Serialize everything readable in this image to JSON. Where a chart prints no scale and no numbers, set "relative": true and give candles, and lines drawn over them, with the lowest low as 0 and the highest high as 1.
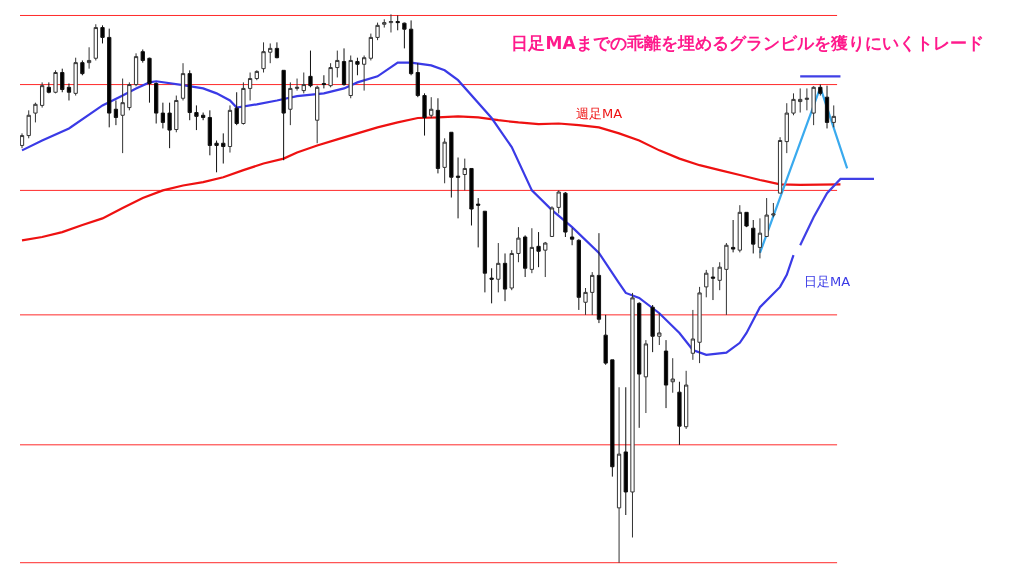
{
  "chart_data": {
    "type": "candlestick",
    "relative": true,
    "title": "日足MAまでの乖離を埋めるグランビルを獲りにいくトレード",
    "tick_labels": false,
    "legend": false,
    "categories": [
      null,
      null,
      null,
      null,
      null,
      null,
      null,
      null,
      null,
      null,
      null,
      null,
      null,
      null,
      null,
      null,
      null,
      null,
      null,
      null,
      null,
      null,
      null,
      null,
      null,
      null,
      null,
      null,
      null,
      null,
      null,
      null,
      null,
      null,
      null,
      null,
      null,
      null,
      null,
      null,
      null,
      null,
      null,
      null,
      null,
      null,
      null,
      null,
      null,
      null,
      null,
      null,
      null,
      null,
      null,
      null,
      null,
      null,
      null,
      null,
      null,
      null,
      null,
      null,
      null,
      null,
      null,
      null,
      null,
      null,
      null,
      null,
      null,
      null,
      null,
      null,
      null,
      null,
      null,
      null,
      null,
      null,
      null,
      null,
      null,
      null,
      null,
      null,
      null,
      null,
      null,
      null,
      null,
      null,
      null,
      null,
      null,
      null,
      null,
      null,
      null,
      null,
      null,
      null,
      null,
      null,
      null,
      null,
      null,
      null,
      null,
      null,
      null,
      null,
      null,
      null,
      null,
      null,
      null,
      null,
      null,
      null,
      null,
      null,
      null,
      null,
      null,
      null
    ],
    "ohlc": [
      [
        0.761,
        0.783,
        0.756,
        0.779
      ],
      [
        0.779,
        0.825,
        0.774,
        0.816
      ],
      [
        0.82,
        0.839,
        0.803,
        0.836
      ],
      [
        0.834,
        0.876,
        0.83,
        0.87
      ],
      [
        0.867,
        0.876,
        0.856,
        0.858
      ],
      [
        0.858,
        0.898,
        0.856,
        0.894
      ],
      [
        0.894,
        0.901,
        0.858,
        0.863
      ],
      [
        0.867,
        0.874,
        0.843,
        0.858
      ],
      [
        0.856,
        0.921,
        0.852,
        0.912
      ],
      [
        0.912,
        0.916,
        0.889,
        0.892
      ],
      [
        0.912,
        0.94,
        0.901,
        0.916
      ],
      [
        0.92,
        0.982,
        0.916,
        0.976
      ],
      [
        0.976,
        0.98,
        0.947,
        0.958
      ],
      [
        0.958,
        0.974,
        0.794,
        0.82
      ],
      [
        0.827,
        0.843,
        0.798,
        0.812
      ],
      [
        0.816,
        0.883,
        0.747,
        0.839
      ],
      [
        0.83,
        0.876,
        0.825,
        0.872
      ],
      [
        0.872,
        0.929,
        0.869,
        0.923
      ],
      [
        0.932,
        0.936,
        0.912,
        0.916
      ],
      [
        0.92,
        0.921,
        0.839,
        0.874
      ],
      [
        0.874,
        0.876,
        0.801,
        0.82
      ],
      [
        0.82,
        0.839,
        0.792,
        0.803
      ],
      [
        0.82,
        0.839,
        0.756,
        0.789
      ],
      [
        0.79,
        0.852,
        0.785,
        0.843
      ],
      [
        0.847,
        0.911,
        0.843,
        0.892
      ],
      [
        0.892,
        0.898,
        0.807,
        0.821
      ],
      [
        0.821,
        0.834,
        0.789,
        0.814
      ],
      [
        0.816,
        0.821,
        0.807,
        0.812
      ],
      [
        0.812,
        0.825,
        0.743,
        0.761
      ],
      [
        0.765,
        0.77,
        0.712,
        0.761
      ],
      [
        0.765,
        0.783,
        0.728,
        0.759
      ],
      [
        0.759,
        0.834,
        0.748,
        0.825
      ],
      [
        0.829,
        0.858,
        0.798,
        0.801
      ],
      [
        0.801,
        0.876,
        0.799,
        0.865
      ],
      [
        0.865,
        0.894,
        0.843,
        0.883
      ],
      [
        0.883,
        0.898,
        0.88,
        0.896
      ],
      [
        0.901,
        0.949,
        0.894,
        0.932
      ],
      [
        0.931,
        0.947,
        0.911,
        0.938
      ],
      [
        0.938,
        0.949,
        0.92,
        0.921
      ],
      [
        0.898,
        0.898,
        0.734,
        0.82
      ],
      [
        0.827,
        0.876,
        0.798,
        0.865
      ],
      [
        0.865,
        0.883,
        0.861,
        0.867
      ],
      [
        0.861,
        0.894,
        0.856,
        0.872
      ],
      [
        0.887,
        0.934,
        0.867,
        0.87
      ],
      [
        0.807,
        0.87,
        0.765,
        0.867
      ],
      [
        0.874,
        0.889,
        0.865,
        0.872
      ],
      [
        0.87,
        0.911,
        0.867,
        0.903
      ],
      [
        0.903,
        0.934,
        0.885,
        0.916
      ],
      [
        0.914,
        0.938,
        0.87,
        0.872
      ],
      [
        0.852,
        0.925,
        0.847,
        0.916
      ],
      [
        0.914,
        0.921,
        0.889,
        0.909
      ],
      [
        0.909,
        0.925,
        0.861,
        0.921
      ],
      [
        0.92,
        0.965,
        0.916,
        0.958
      ],
      [
        0.958,
        0.985,
        0.953,
        0.98
      ],
      [
        0.982,
        0.991,
        0.976,
        0.985
      ],
      [
        0.985,
        1.0,
        0.967,
        0.987
      ],
      [
        0.987,
        0.998,
        0.971,
        0.985
      ],
      [
        0.984,
        0.985,
        0.938,
        0.973
      ],
      [
        0.973,
        0.989,
        0.889,
        0.892
      ],
      [
        0.894,
        0.911,
        0.849,
        0.852
      ],
      [
        0.852,
        0.856,
        0.779,
        0.812
      ],
      [
        0.816,
        0.849,
        0.811,
        0.827
      ],
      [
        0.825,
        0.847,
        0.71,
        0.719
      ],
      [
        0.721,
        0.774,
        0.692,
        0.767
      ],
      [
        0.785,
        0.785,
        0.666,
        0.703
      ],
      [
        0.705,
        0.739,
        0.628,
        0.703
      ],
      [
        0.708,
        0.737,
        0.679,
        0.719
      ],
      [
        0.719,
        0.719,
        0.615,
        0.645
      ],
      [
        0.654,
        0.665,
        0.575,
        0.652
      ],
      [
        0.641,
        0.641,
        0.493,
        0.528
      ],
      [
        0.519,
        0.537,
        0.473,
        0.517
      ],
      [
        0.517,
        0.583,
        0.493,
        0.546
      ],
      [
        0.546,
        0.564,
        0.477,
        0.499
      ],
      [
        0.501,
        0.57,
        0.497,
        0.564
      ],
      [
        0.564,
        0.612,
        0.548,
        0.592
      ],
      [
        0.594,
        0.597,
        0.521,
        0.537
      ],
      [
        0.535,
        0.61,
        0.528,
        0.575
      ],
      [
        0.577,
        0.603,
        0.539,
        0.568
      ],
      [
        0.57,
        0.585,
        0.521,
        0.583
      ],
      [
        0.595,
        0.65,
        0.594,
        0.647
      ],
      [
        0.648,
        0.679,
        0.637,
        0.676
      ],
      [
        0.674,
        0.676,
        0.594,
        0.603
      ],
      [
        0.594,
        0.61,
        0.579,
        0.59
      ],
      [
        0.588,
        0.59,
        0.461,
        0.484
      ],
      [
        0.475,
        0.501,
        0.452,
        0.493
      ],
      [
        0.493,
        0.53,
        0.452,
        0.524
      ],
      [
        0.524,
        0.601,
        0.437,
        0.444
      ],
      [
        0.415,
        0.452,
        0.361,
        0.364
      ],
      [
        0.37,
        0.37,
        0.157,
        0.175
      ],
      [
        0.1,
        0.32,
        0.0,
        0.198
      ],
      [
        0.202,
        0.32,
        0.087,
        0.129
      ],
      [
        0.129,
        0.492,
        0.046,
        0.483
      ],
      [
        0.473,
        0.475,
        0.246,
        0.344
      ],
      [
        0.339,
        0.406,
        0.273,
        0.399
      ],
      [
        0.466,
        0.47,
        0.384,
        0.413
      ],
      [
        0.413,
        0.455,
        0.397,
        0.419
      ],
      [
        0.386,
        0.406,
        0.282,
        0.324
      ],
      [
        0.33,
        0.373,
        0.31,
        0.335
      ],
      [
        0.311,
        0.33,
        0.215,
        0.249
      ],
      [
        0.248,
        0.35,
        0.244,
        0.324
      ],
      [
        0.382,
        0.461,
        0.37,
        0.408
      ],
      [
        0.402,
        0.503,
        0.364,
        0.492
      ],
      [
        0.503,
        0.534,
        0.484,
        0.528
      ],
      [
        0.521,
        0.539,
        0.479,
        0.519
      ],
      [
        0.515,
        0.548,
        0.497,
        0.539
      ],
      [
        0.535,
        0.583,
        0.452,
        0.579
      ],
      [
        0.575,
        0.625,
        0.566,
        0.572
      ],
      [
        0.57,
        0.652,
        0.566,
        0.639
      ],
      [
        0.639,
        0.639,
        0.612,
        0.614
      ],
      [
        0.61,
        0.625,
        0.564,
        0.581
      ],
      [
        0.575,
        0.628,
        0.555,
        0.601
      ],
      [
        0.595,
        0.665,
        0.594,
        0.634
      ],
      [
        0.634,
        0.656,
        0.63,
        0.636
      ],
      [
        0.674,
        0.776,
        0.674,
        0.77
      ],
      [
        0.768,
        0.838,
        0.747,
        0.82
      ],
      [
        0.82,
        0.856,
        0.816,
        0.845
      ],
      [
        0.841,
        0.865,
        0.821,
        0.845
      ],
      [
        0.845,
        0.865,
        0.825,
        0.847
      ],
      [
        0.82,
        0.869,
        0.798,
        0.867
      ],
      [
        0.867,
        0.872,
        0.852,
        0.856
      ],
      [
        0.849,
        0.87,
        0.792,
        0.803
      ],
      [
        0.803,
        0.834,
        0.794,
        0.814
      ],
      null,
      null,
      null,
      null,
      null,
      null
    ],
    "series": [
      {
        "type": "line",
        "name": "週足MA",
        "color": "#ee1111",
        "values": [
          0.588,
          null,
          null,
          0.594,
          null,
          null,
          0.603,
          null,
          null,
          0.616,
          null,
          null,
          0.628,
          null,
          null,
          0.647,
          null,
          null,
          0.665,
          null,
          null,
          0.679,
          null,
          null,
          0.688,
          null,
          null,
          0.694,
          null,
          null,
          0.703,
          null,
          null,
          0.716,
          null,
          null,
          0.728,
          null,
          null,
          0.737,
          null,
          0.748,
          null,
          null,
          0.761,
          null,
          null,
          0.772,
          null,
          null,
          0.783,
          null,
          null,
          0.794,
          null,
          null,
          0.803,
          null,
          null,
          0.811,
          null,
          null,
          0.812,
          null,
          null,
          0.814,
          null,
          null,
          0.812,
          null,
          null,
          0.807,
          null,
          null,
          0.803,
          null,
          null,
          0.8,
          null,
          null,
          0.801,
          null,
          null,
          0.798,
          null,
          null,
          0.794,
          null,
          null,
          0.783,
          null,
          null,
          0.77,
          null,
          null,
          0.752,
          null,
          null,
          0.737,
          null,
          null,
          0.725,
          null,
          null,
          0.716,
          null,
          null,
          0.707,
          null,
          null,
          0.698,
          null,
          null,
          0.69,
          null,
          null,
          0.689,
          null,
          null,
          null,
          null,
          null,
          0.69,
          null,
          null,
          null,
          null,
          null
        ]
      },
      {
        "type": "line",
        "name": "日足MA",
        "color": "#3a3ae6",
        "values": [
          0.752,
          null,
          null,
          0.77,
          null,
          null,
          null,
          0.792,
          null,
          null,
          null,
          null,
          0.834,
          null,
          null,
          0.852,
          null,
          0.865,
          null,
          0.876,
          0.878,
          null,
          null,
          null,
          0.871,
          null,
          null,
          0.865,
          null,
          0.856,
          null,
          0.843,
          0.83,
          null,
          null,
          0.836,
          null,
          null,
          0.843,
          null,
          null,
          0.851,
          null,
          null,
          null,
          0.856,
          null,
          null,
          0.865,
          null,
          0.876,
          null,
          null,
          0.887,
          null,
          null,
          0.912,
          null,
          0.912,
          null,
          null,
          0.907,
          null,
          0.898,
          null,
          0.88,
          null,
          null,
          null,
          null,
          0.811,
          null,
          null,
          0.758,
          null,
          null,
          0.679,
          null,
          null,
          0.643,
          null,
          null,
          0.612,
          null,
          null,
          null,
          0.565,
          null,
          null,
          0.51,
          0.492,
          null,
          0.483,
          null,
          null,
          0.455,
          null,
          null,
          0.419,
          null,
          0.388,
          null,
          0.379,
          null,
          null,
          0.383,
          null,
          0.401,
          0.419,
          null,
          0.466,
          null,
          null,
          0.503,
          0.525,
          0.561,
          null,
          null,
          null,
          null,
          null,
          null,
          null,
          null,
          null,
          null,
          null,
          null
        ]
      },
      {
        "type": "line",
        "color": "#4040e6",
        "values": [
          null,
          null,
          null,
          null,
          null,
          null,
          null,
          null,
          null,
          null,
          null,
          null,
          null,
          null,
          null,
          null,
          null,
          null,
          null,
          null,
          null,
          null,
          null,
          null,
          null,
          null,
          null,
          null,
          null,
          null,
          null,
          null,
          null,
          null,
          null,
          null,
          null,
          null,
          null,
          null,
          null,
          null,
          null,
          null,
          null,
          null,
          null,
          null,
          null,
          null,
          null,
          null,
          null,
          null,
          null,
          null,
          null,
          null,
          null,
          null,
          null,
          null,
          null,
          null,
          null,
          null,
          null,
          null,
          null,
          null,
          null,
          null,
          null,
          null,
          null,
          null,
          null,
          null,
          null,
          null,
          null,
          null,
          null,
          null,
          null,
          null,
          null,
          null,
          null,
          null,
          null,
          null,
          null,
          null,
          null,
          null,
          null,
          null,
          null,
          null,
          null,
          null,
          null,
          null,
          null,
          null,
          null,
          null,
          null,
          null,
          null,
          null,
          null,
          null,
          null,
          null,
          0.579,
          null,
          0.63,
          null,
          0.674,
          null,
          0.7,
          null,
          null,
          null,
          null,
          0.7
        ]
      },
      {
        "type": "line",
        "color": "#4040e6",
        "values": [
          null,
          null,
          null,
          null,
          null,
          null,
          null,
          null,
          null,
          null,
          null,
          null,
          null,
          null,
          null,
          null,
          null,
          null,
          null,
          null,
          null,
          null,
          null,
          null,
          null,
          null,
          null,
          null,
          null,
          null,
          null,
          null,
          null,
          null,
          null,
          null,
          null,
          null,
          null,
          null,
          null,
          null,
          null,
          null,
          null,
          null,
          null,
          null,
          null,
          null,
          null,
          null,
          null,
          null,
          null,
          null,
          null,
          null,
          null,
          null,
          null,
          null,
          null,
          null,
          null,
          null,
          null,
          null,
          null,
          null,
          null,
          null,
          null,
          null,
          null,
          null,
          null,
          null,
          null,
          null,
          null,
          null,
          null,
          null,
          null,
          null,
          null,
          null,
          null,
          null,
          null,
          null,
          null,
          null,
          null,
          null,
          null,
          null,
          null,
          null,
          null,
          null,
          null,
          null,
          null,
          null,
          null,
          null,
          null,
          null,
          null,
          null,
          null,
          null,
          null,
          null,
          0.887,
          null,
          null,
          null,
          null,
          null,
          0.887,
          null,
          null,
          null,
          null,
          null
        ]
      },
      {
        "type": "line",
        "color": "#3aaaee",
        "values": [
          null,
          null,
          null,
          null,
          null,
          null,
          null,
          null,
          null,
          null,
          null,
          null,
          null,
          null,
          null,
          null,
          null,
          null,
          null,
          null,
          null,
          null,
          null,
          null,
          null,
          null,
          null,
          null,
          null,
          null,
          null,
          null,
          null,
          null,
          null,
          null,
          null,
          null,
          null,
          null,
          null,
          null,
          null,
          null,
          null,
          null,
          null,
          null,
          null,
          null,
          null,
          null,
          null,
          null,
          null,
          null,
          null,
          null,
          null,
          null,
          null,
          null,
          null,
          null,
          null,
          null,
          null,
          null,
          null,
          null,
          null,
          null,
          null,
          null,
          null,
          null,
          null,
          null,
          null,
          null,
          null,
          null,
          null,
          null,
          null,
          null,
          null,
          null,
          null,
          null,
          null,
          null,
          null,
          null,
          null,
          null,
          null,
          null,
          null,
          null,
          null,
          null,
          null,
          null,
          null,
          null,
          null,
          null,
          null,
          null,
          0.565,
          null,
          null,
          null,
          null,
          null,
          null,
          null,
          null,
          0.867,
          null,
          null,
          null,
          0.719,
          null,
          null,
          null,
          null
        ]
      }
    ],
    "ref_lines": [
      {
        "axis": "y",
        "value": 0.998,
        "color": "#ff2a2a"
      },
      {
        "axis": "y",
        "value": 0.872,
        "color": "#ff2a2a"
      },
      {
        "axis": "y",
        "value": 0.679,
        "color": "#ff2a2a"
      },
      {
        "axis": "y",
        "value": 0.452,
        "color": "#ff2a2a"
      },
      {
        "axis": "y",
        "value": 0.215,
        "color": "#ff2a2a"
      },
      {
        "axis": "y",
        "value": 0.0,
        "color": "#ff2a2a"
      }
    ]
  }
}
